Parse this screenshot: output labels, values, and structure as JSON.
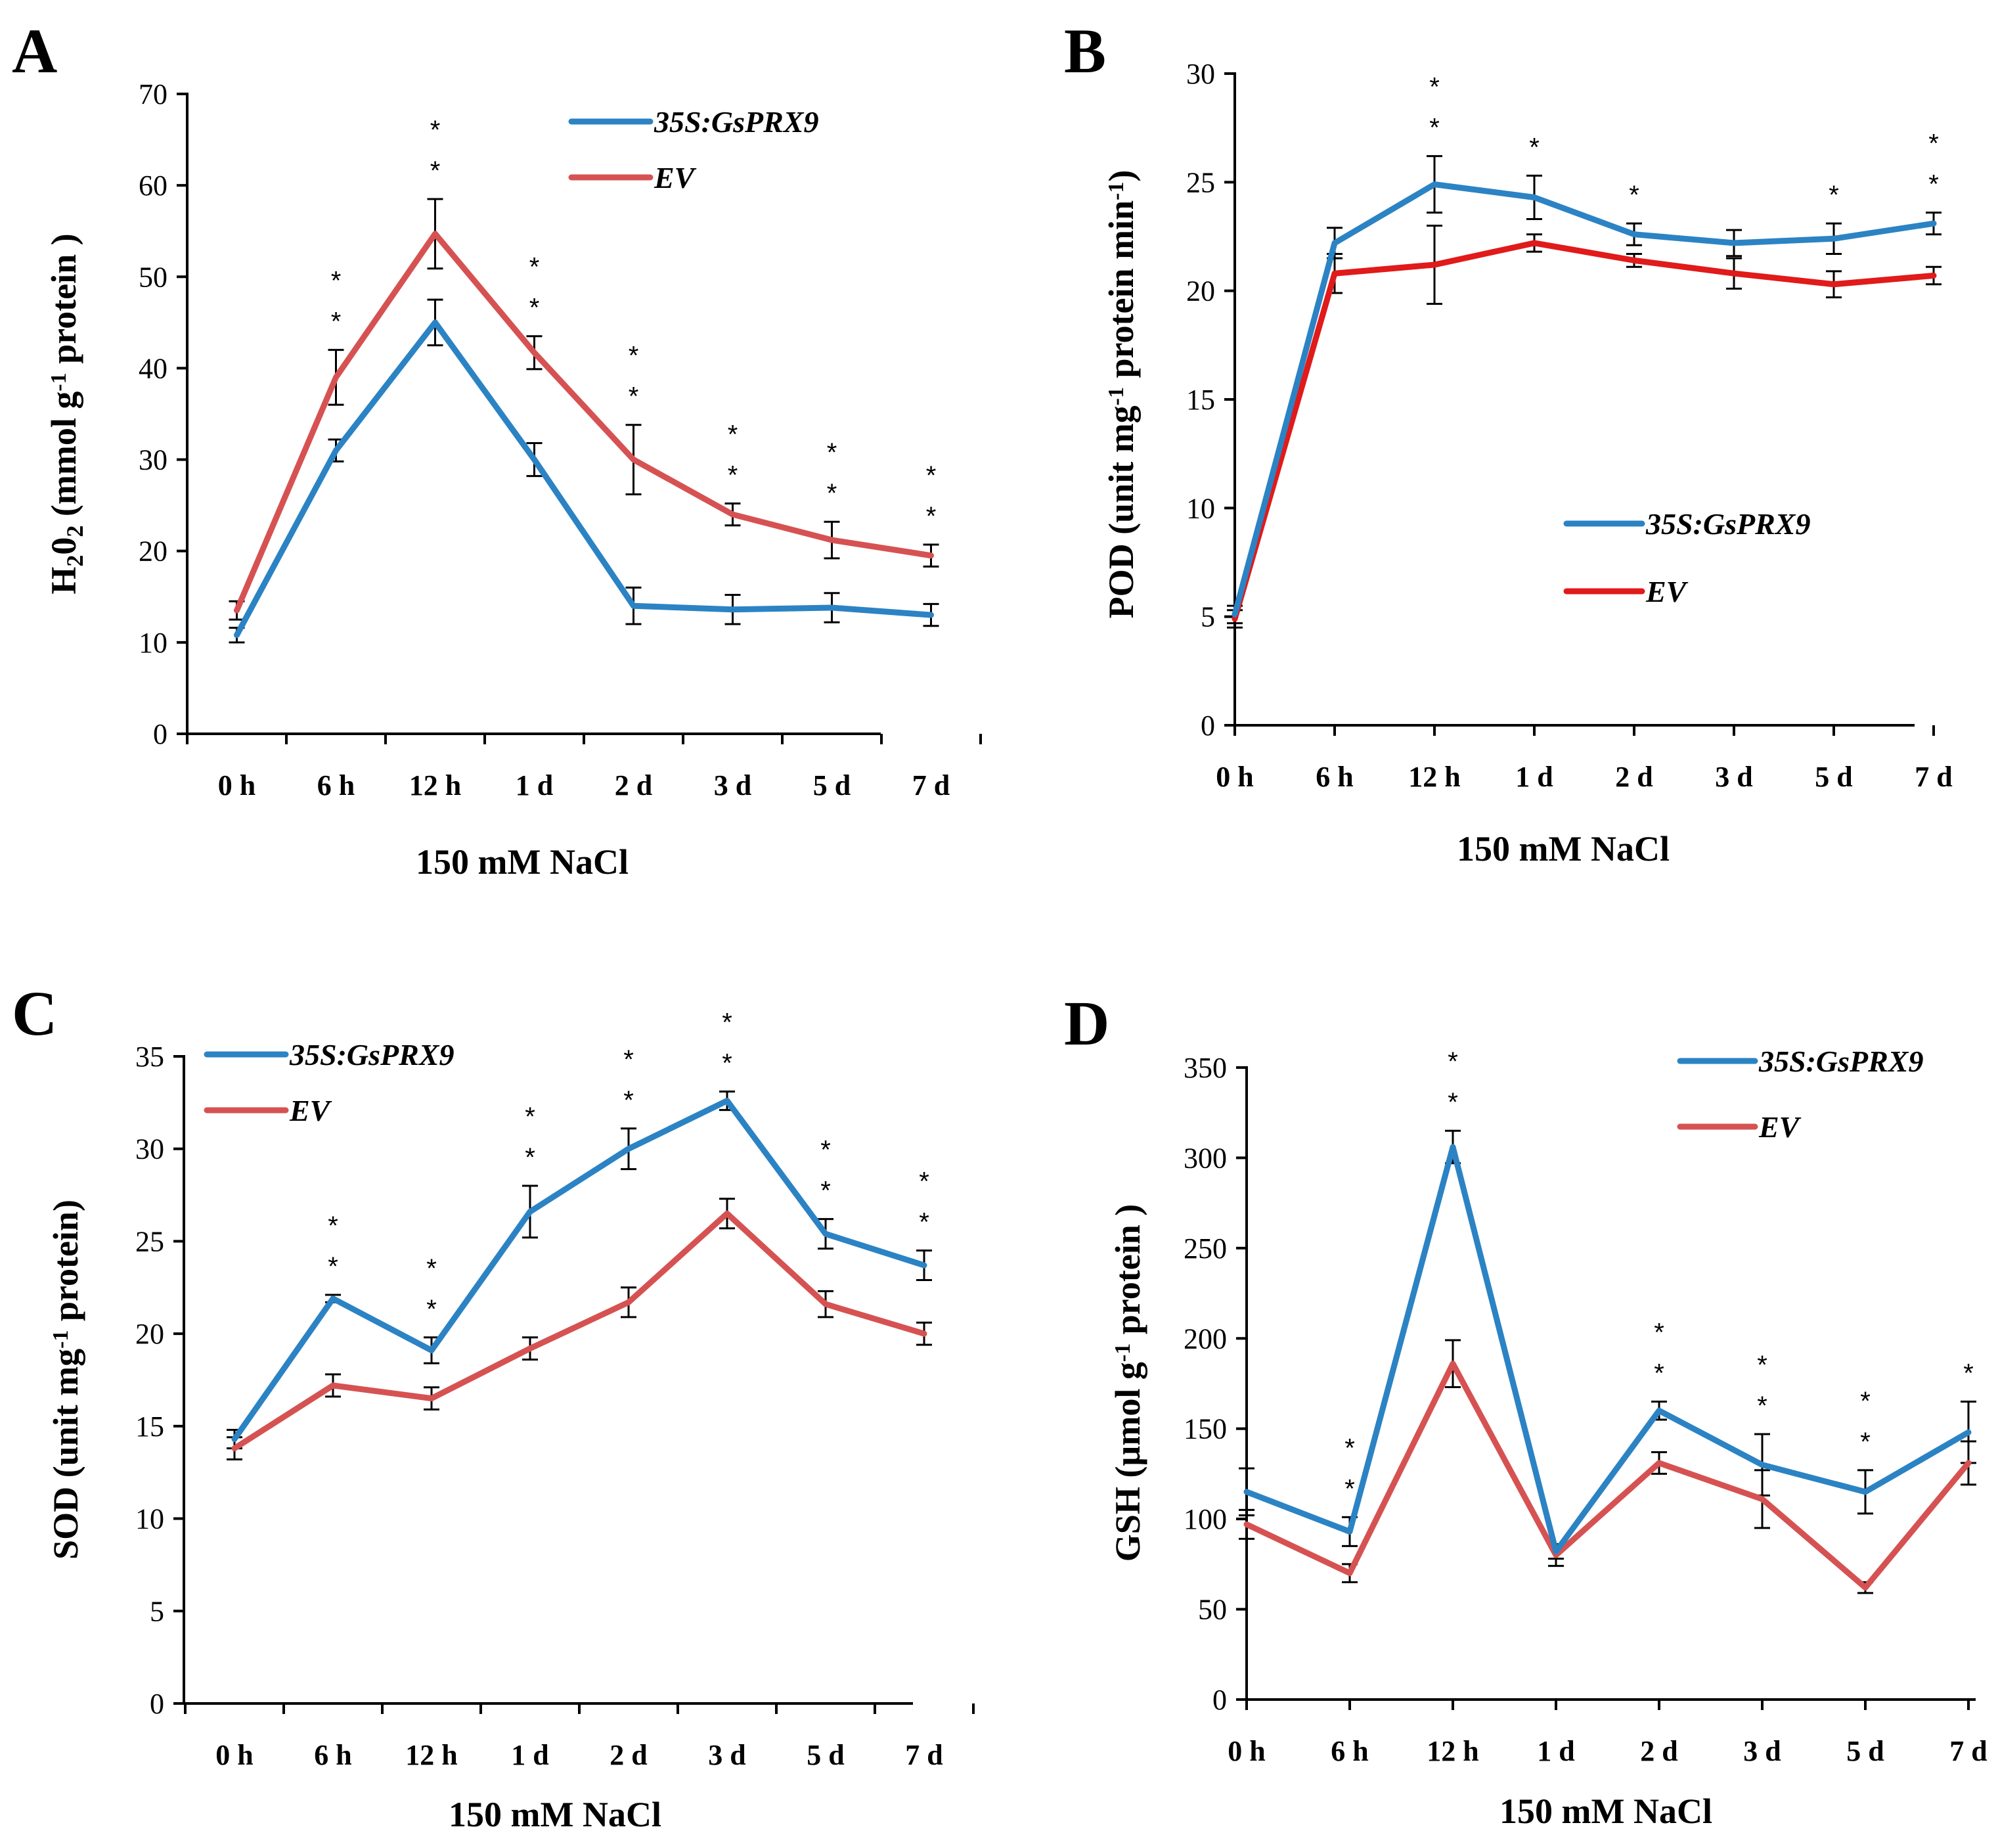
{
  "colors": {
    "transgenic": "#2b83c4",
    "ev_soft": "#d65252",
    "ev_bright": "#e11a1a",
    "axis": "#000000"
  },
  "chart_data": [
    {
      "type": "line",
      "panel": "A",
      "categories": [
        "0 h",
        "6 h",
        "12 h",
        "1 d",
        "2 d",
        "3 d",
        "5 d",
        "7 d"
      ],
      "xlabel": "150 mM   NaCl",
      "ylabel": {
        "main": "H",
        "sub1": "2",
        "mid": "0",
        "sub2": "2",
        "rest": " (mmol g",
        "sup": "-1",
        "tail": " protein )"
      },
      "ylim": [
        0,
        70
      ],
      "yticks": [
        0,
        10,
        20,
        30,
        40,
        50,
        60,
        70
      ],
      "legend": "top-right",
      "series": [
        {
          "name": "35S:GsPRX9",
          "color": "#2b83c4",
          "values": [
            10.8,
            31,
            45,
            30,
            14,
            13.6,
            13.8,
            13
          ],
          "errors": [
            0.8,
            1.2,
            2.5,
            1.8,
            2,
            1.6,
            1.6,
            1.2
          ]
        },
        {
          "name": "EV",
          "color": "#d65252",
          "values": [
            13.5,
            39,
            54.7,
            41.7,
            30,
            24,
            21.2,
            19.5
          ],
          "errors": [
            1,
            3,
            3.8,
            1.8,
            3.8,
            1.2,
            2,
            1.2
          ]
        }
      ],
      "significance": [
        "",
        "**",
        "**",
        "**",
        "**",
        "**",
        "**",
        "**"
      ]
    },
    {
      "type": "line",
      "panel": "B",
      "categories": [
        "0 h",
        "6 h",
        "12 h",
        "1 d",
        "2 d",
        "3 d",
        "5 d",
        "7 d"
      ],
      "xlabel": "150 mM   NaCl",
      "ylabel": {
        "main": "POD (unit mg",
        "sup": "-1",
        "tail": " protein min",
        "sup2": "-1",
        "tail2": ")"
      },
      "ylim": [
        0,
        30
      ],
      "yticks": [
        0,
        5,
        10,
        15,
        20,
        25,
        30
      ],
      "legend": "center-right",
      "series": [
        {
          "name": "35S:GsPRX9",
          "color": "#2b83c4",
          "values": [
            5.1,
            22.2,
            24.9,
            24.3,
            22.6,
            22.2,
            22.4,
            23.1
          ],
          "errors": [
            0.4,
            0.7,
            1.3,
            1,
            0.5,
            0.6,
            0.7,
            0.5
          ]
        },
        {
          "name": "EV",
          "color": "#e11a1a",
          "values": [
            4.9,
            20.8,
            21.2,
            22.2,
            21.4,
            20.8,
            20.3,
            20.7
          ],
          "errors": [
            0.4,
            0.9,
            1.8,
            0.4,
            0.3,
            0.7,
            0.6,
            0.4
          ]
        }
      ],
      "significance": [
        "",
        "",
        "**",
        "*",
        "*",
        "",
        "*",
        "**"
      ]
    },
    {
      "type": "line",
      "panel": "C",
      "categories": [
        "0 h",
        "6 h",
        "12 h",
        "1 d",
        "2 d",
        "3 d",
        "5 d",
        "7 d"
      ],
      "xlabel": "150 mM   NaCl",
      "ylabel": {
        "main": "SOD (unit mg",
        "sup": "-1",
        "tail": " protein)"
      },
      "ylim": [
        0,
        35
      ],
      "yticks": [
        0,
        5,
        10,
        15,
        20,
        25,
        30,
        35
      ],
      "legend": "top-left",
      "series": [
        {
          "name": "35S:GsPRX9",
          "color": "#2b83c4",
          "values": [
            14.3,
            21.9,
            19.1,
            26.6,
            30,
            32.6,
            25.4,
            23.7
          ],
          "errors": [
            0.5,
            0.2,
            0.7,
            1.4,
            1.1,
            0.5,
            0.8,
            0.8
          ]
        },
        {
          "name": "EV",
          "color": "#d65252",
          "values": [
            13.8,
            17.2,
            16.5,
            19.2,
            21.7,
            26.5,
            21.6,
            20
          ],
          "errors": [
            0.6,
            0.6,
            0.6,
            0.6,
            0.8,
            0.8,
            0.7,
            0.6
          ]
        }
      ],
      "significance": [
        "",
        "**",
        "**",
        "**",
        "**",
        "**",
        "**",
        "**"
      ]
    },
    {
      "type": "line",
      "panel": "D",
      "categories": [
        "0 h",
        "6 h",
        "12 h",
        "1 d",
        "2 d",
        "3 d",
        "5 d",
        "7 d"
      ],
      "xlabel": "150 mM   NaCl",
      "ylabel": {
        "main": "GSH (µmol g",
        "sup": "-1",
        "tail": " protein )"
      },
      "ylim": [
        0,
        350
      ],
      "yticks": [
        0,
        50,
        100,
        150,
        200,
        250,
        300,
        350
      ],
      "legend": "top-right",
      "series": [
        {
          "name": "35S:GsPRX9",
          "color": "#2b83c4",
          "values": [
            115,
            93,
            306,
            82,
            160,
            130,
            115,
            148
          ],
          "errors": [
            13,
            8,
            9,
            4,
            5,
            17,
            12,
            17
          ]
        },
        {
          "name": "EV",
          "color": "#d65252",
          "values": [
            97,
            70,
            186,
            80,
            131,
            111,
            62,
            131
          ],
          "errors": [
            8,
            5,
            13,
            6,
            6,
            16,
            3,
            12
          ]
        }
      ],
      "significance": [
        "",
        "**",
        "**",
        "",
        "**",
        "**",
        "**",
        "*"
      ]
    }
  ]
}
